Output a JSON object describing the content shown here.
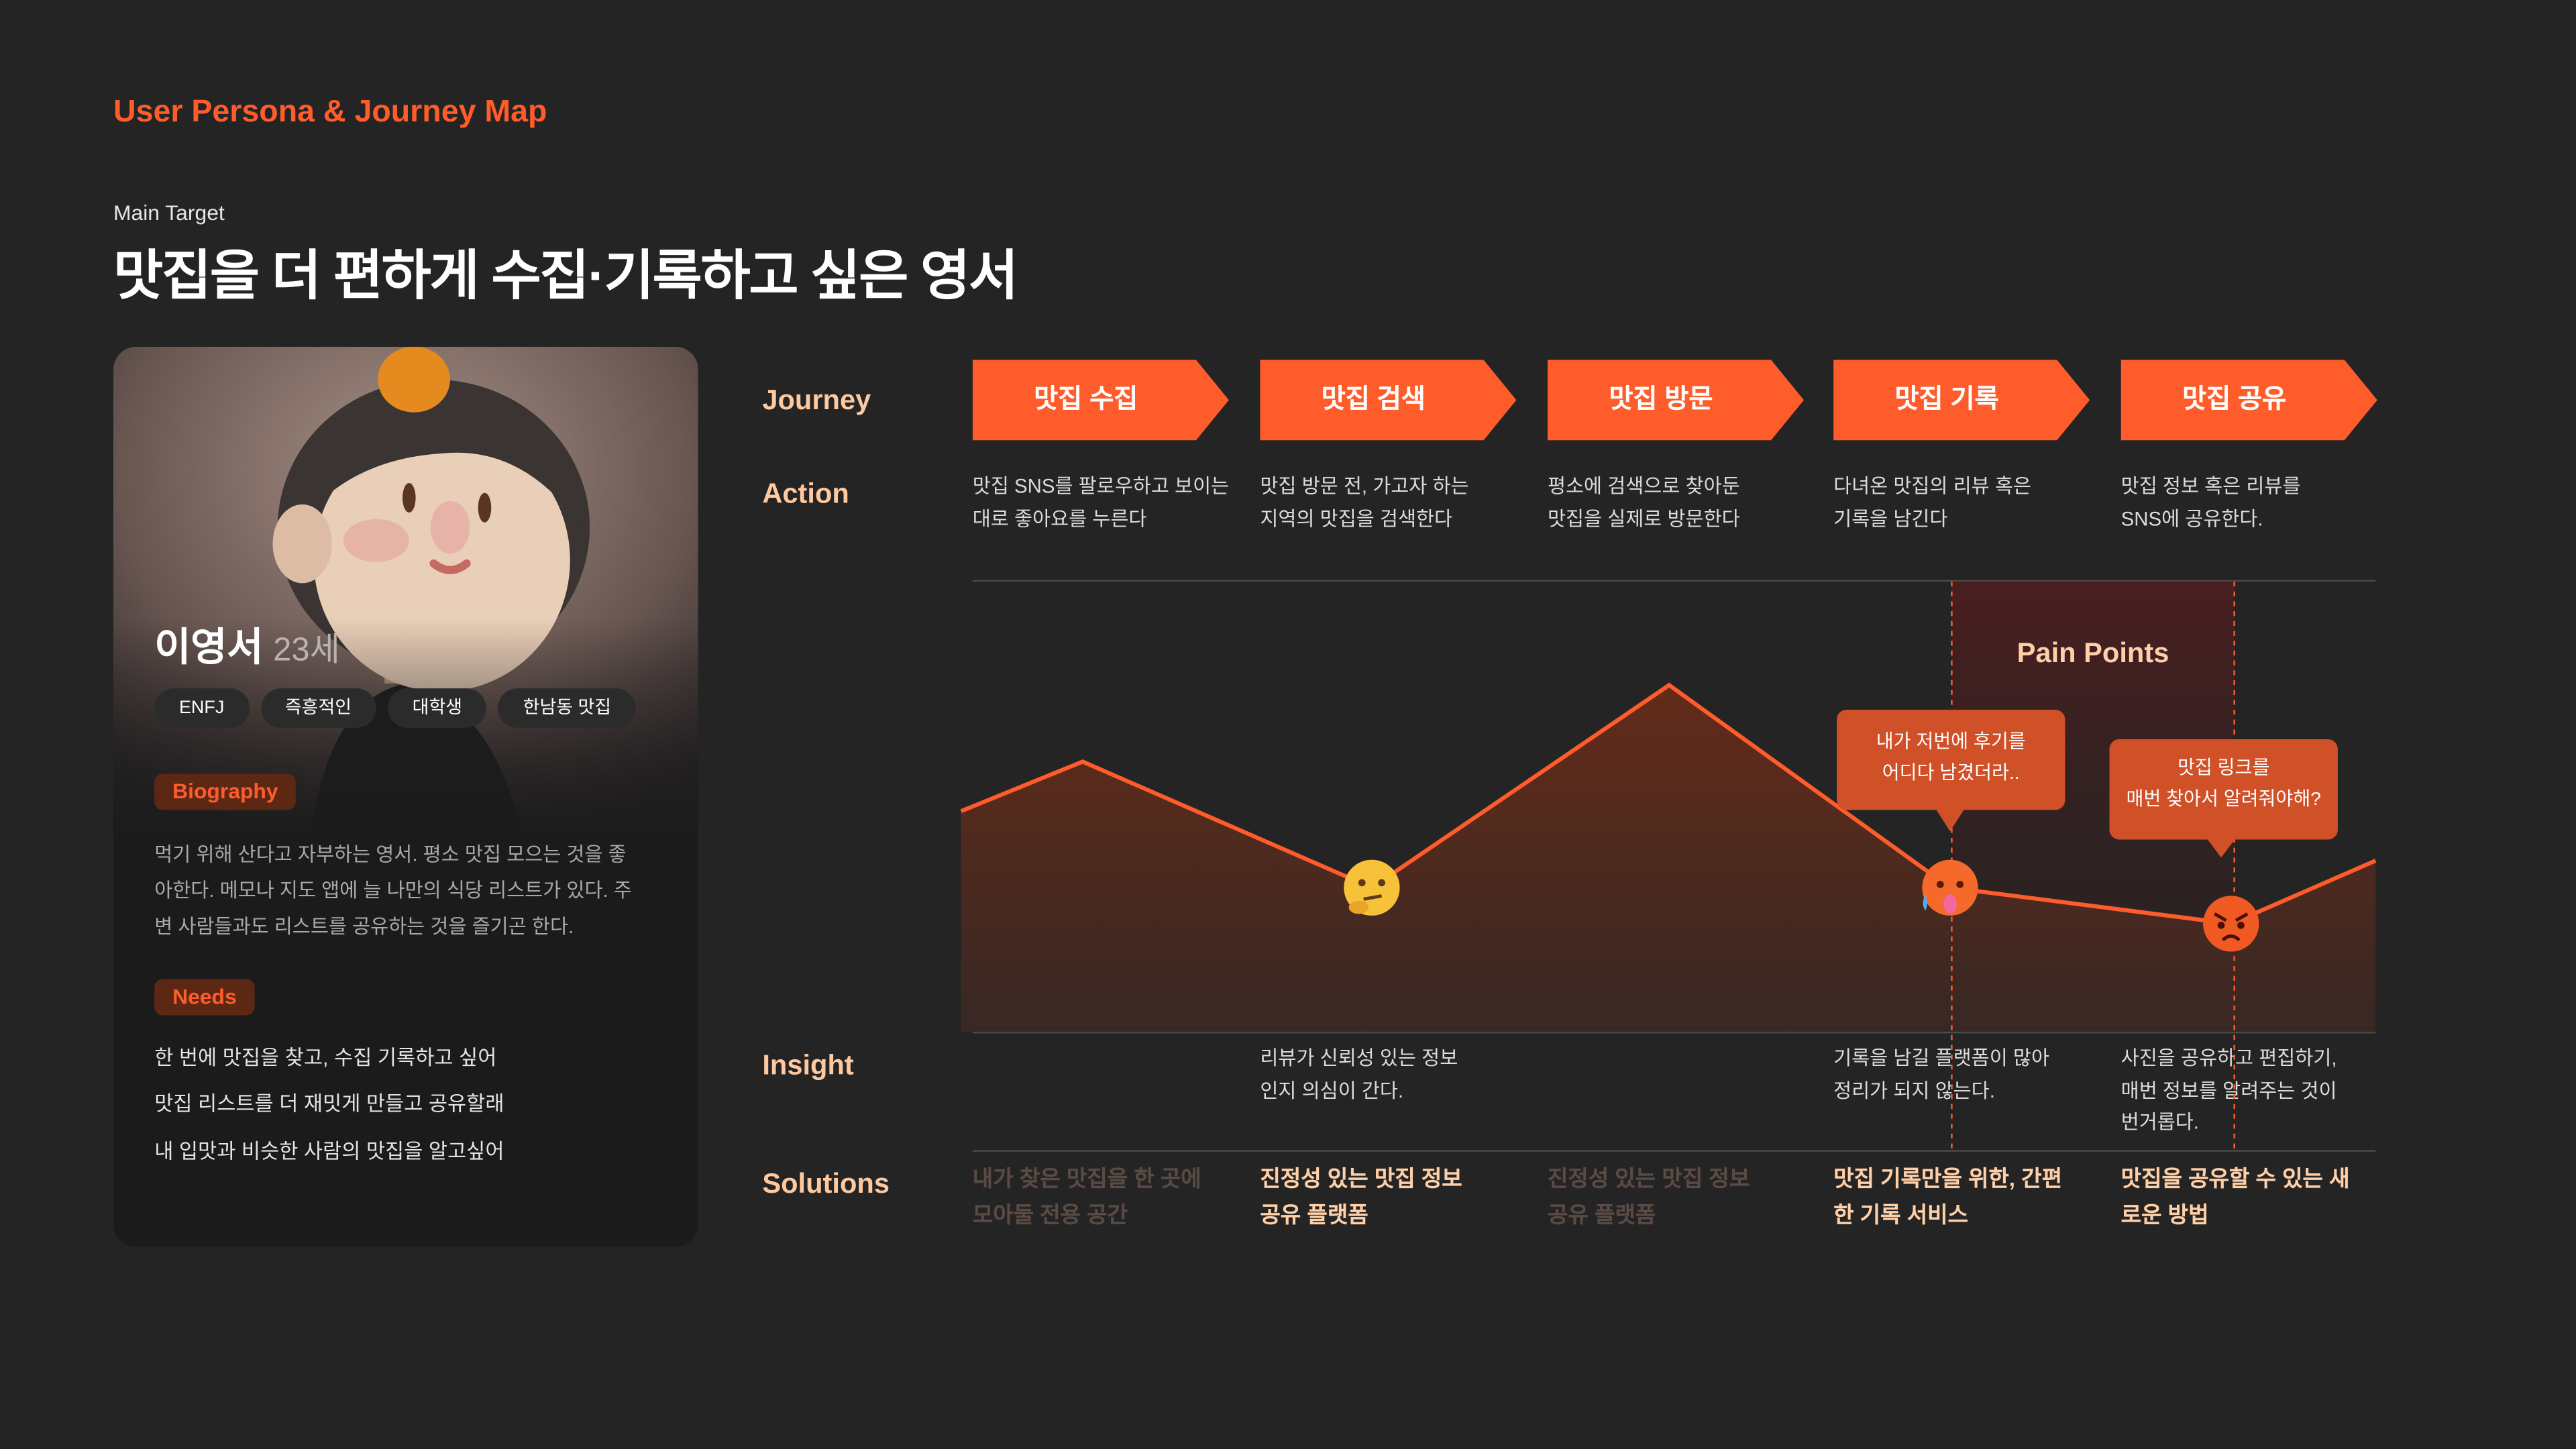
{
  "header": {
    "app_title": "User Persona & Journey Map",
    "subtitle": "Main Target",
    "title": "맛집을 더 편하게 수집·기록하고 싶은 영서"
  },
  "persona": {
    "name": "이영서",
    "age": "23세",
    "tags": [
      "ENFJ",
      "즉흥적인",
      "대학생",
      "한남동 맛집"
    ],
    "biography_label": "Biography",
    "biography": [
      "먹기 위해 산다고 자부하는 영서. 평소 맛집 모으는 것을 좋",
      "아한다. 메모나 지도 앱에 늘 나만의 식당 리스트가 있다. 주",
      "변 사람들과도 리스트를 공유하는 것을 즐기곤 한다."
    ],
    "needs_label": "Needs",
    "needs": [
      "한 번에 맛집을 찾고, 수집 기록하고 싶어",
      "맛집 리스트를 더 재밋게 만들고 공유할래",
      "내 입맛과 비슷한 사람의 맛집을 알고싶어"
    ]
  },
  "rows": {
    "journey": "Journey",
    "action": "Action",
    "insight": "Insight",
    "solutions": "Solutions"
  },
  "stages": [
    {
      "label": "맛집 수집",
      "action": [
        "맛집 SNS를 팔로우하고 보이는",
        "대로 좋아요를 누른다"
      ],
      "insight": [
        "",
        ""
      ],
      "solution": [
        "내가 찾은 맛집을 한 곳에",
        "모아둘 전용 공간"
      ],
      "solution_dim": true
    },
    {
      "label": "맛집 검색",
      "action": [
        "맛집 방문 전, 가고자 하는",
        "지역의 맛집을 검색한다"
      ],
      "insight": [
        "리뷰가 신뢰성 있는 정보",
        "인지 의심이 간다."
      ],
      "solution": [
        "진정성 있는 맛집 정보",
        "공유 플랫폼"
      ],
      "solution_dim": false
    },
    {
      "label": "맛집 방문",
      "action": [
        "평소에 검색으로 찾아둔",
        "맛집을 실제로 방문한다"
      ],
      "insight": [
        "",
        ""
      ],
      "solution": [
        "진정성 있는 맛집 정보",
        "공유 플랫폼"
      ],
      "solution_dim": true
    },
    {
      "label": "맛집 기록",
      "action": [
        "다녀온 맛집의 리뷰 혹은",
        "기록을 남긴다"
      ],
      "insight": [
        "기록을 남길 플랫폼이 많아",
        "정리가 되지 않는다."
      ],
      "solution": [
        "맛집 기록만을 위한, 간편",
        "한 기록 서비스"
      ],
      "solution_dim": false
    },
    {
      "label": "맛집 공유",
      "action": [
        "맛집 정보 혹은 리뷰를",
        "SNS에 공유한다."
      ],
      "insight": [
        "사진을 공유하고 편집하기,",
        "매번 정보를 알려주는 것이",
        "번거롭다."
      ],
      "solution": [
        "맛집을 공유할 수 있는 새",
        "로운 방법"
      ],
      "solution_dim": false
    }
  ],
  "pain_points": {
    "title": "Pain Points",
    "bubbles": [
      [
        "내가 저번에 후기를",
        "어디다 남겼더라.."
      ],
      [
        "맛집 링크를",
        "매번 찾아서 알려줘야해?"
      ]
    ]
  },
  "emotion_curve": {
    "levels": [
      0.49,
      0.6,
      0.32,
      0.77,
      0.32,
      0.24,
      0.38
    ],
    "markers": [
      {
        "stage": "맛집 검색",
        "icon": "thinking-face-icon"
      },
      {
        "stage": "맛집 기록",
        "icon": "hot-face-icon"
      },
      {
        "stage": "맛집 공유",
        "icon": "angry-face-icon"
      }
    ]
  },
  "colors": {
    "accent": "#ff5c2b",
    "bubble": "#d05028",
    "label": "#ffc9a0",
    "background": "#242424"
  }
}
